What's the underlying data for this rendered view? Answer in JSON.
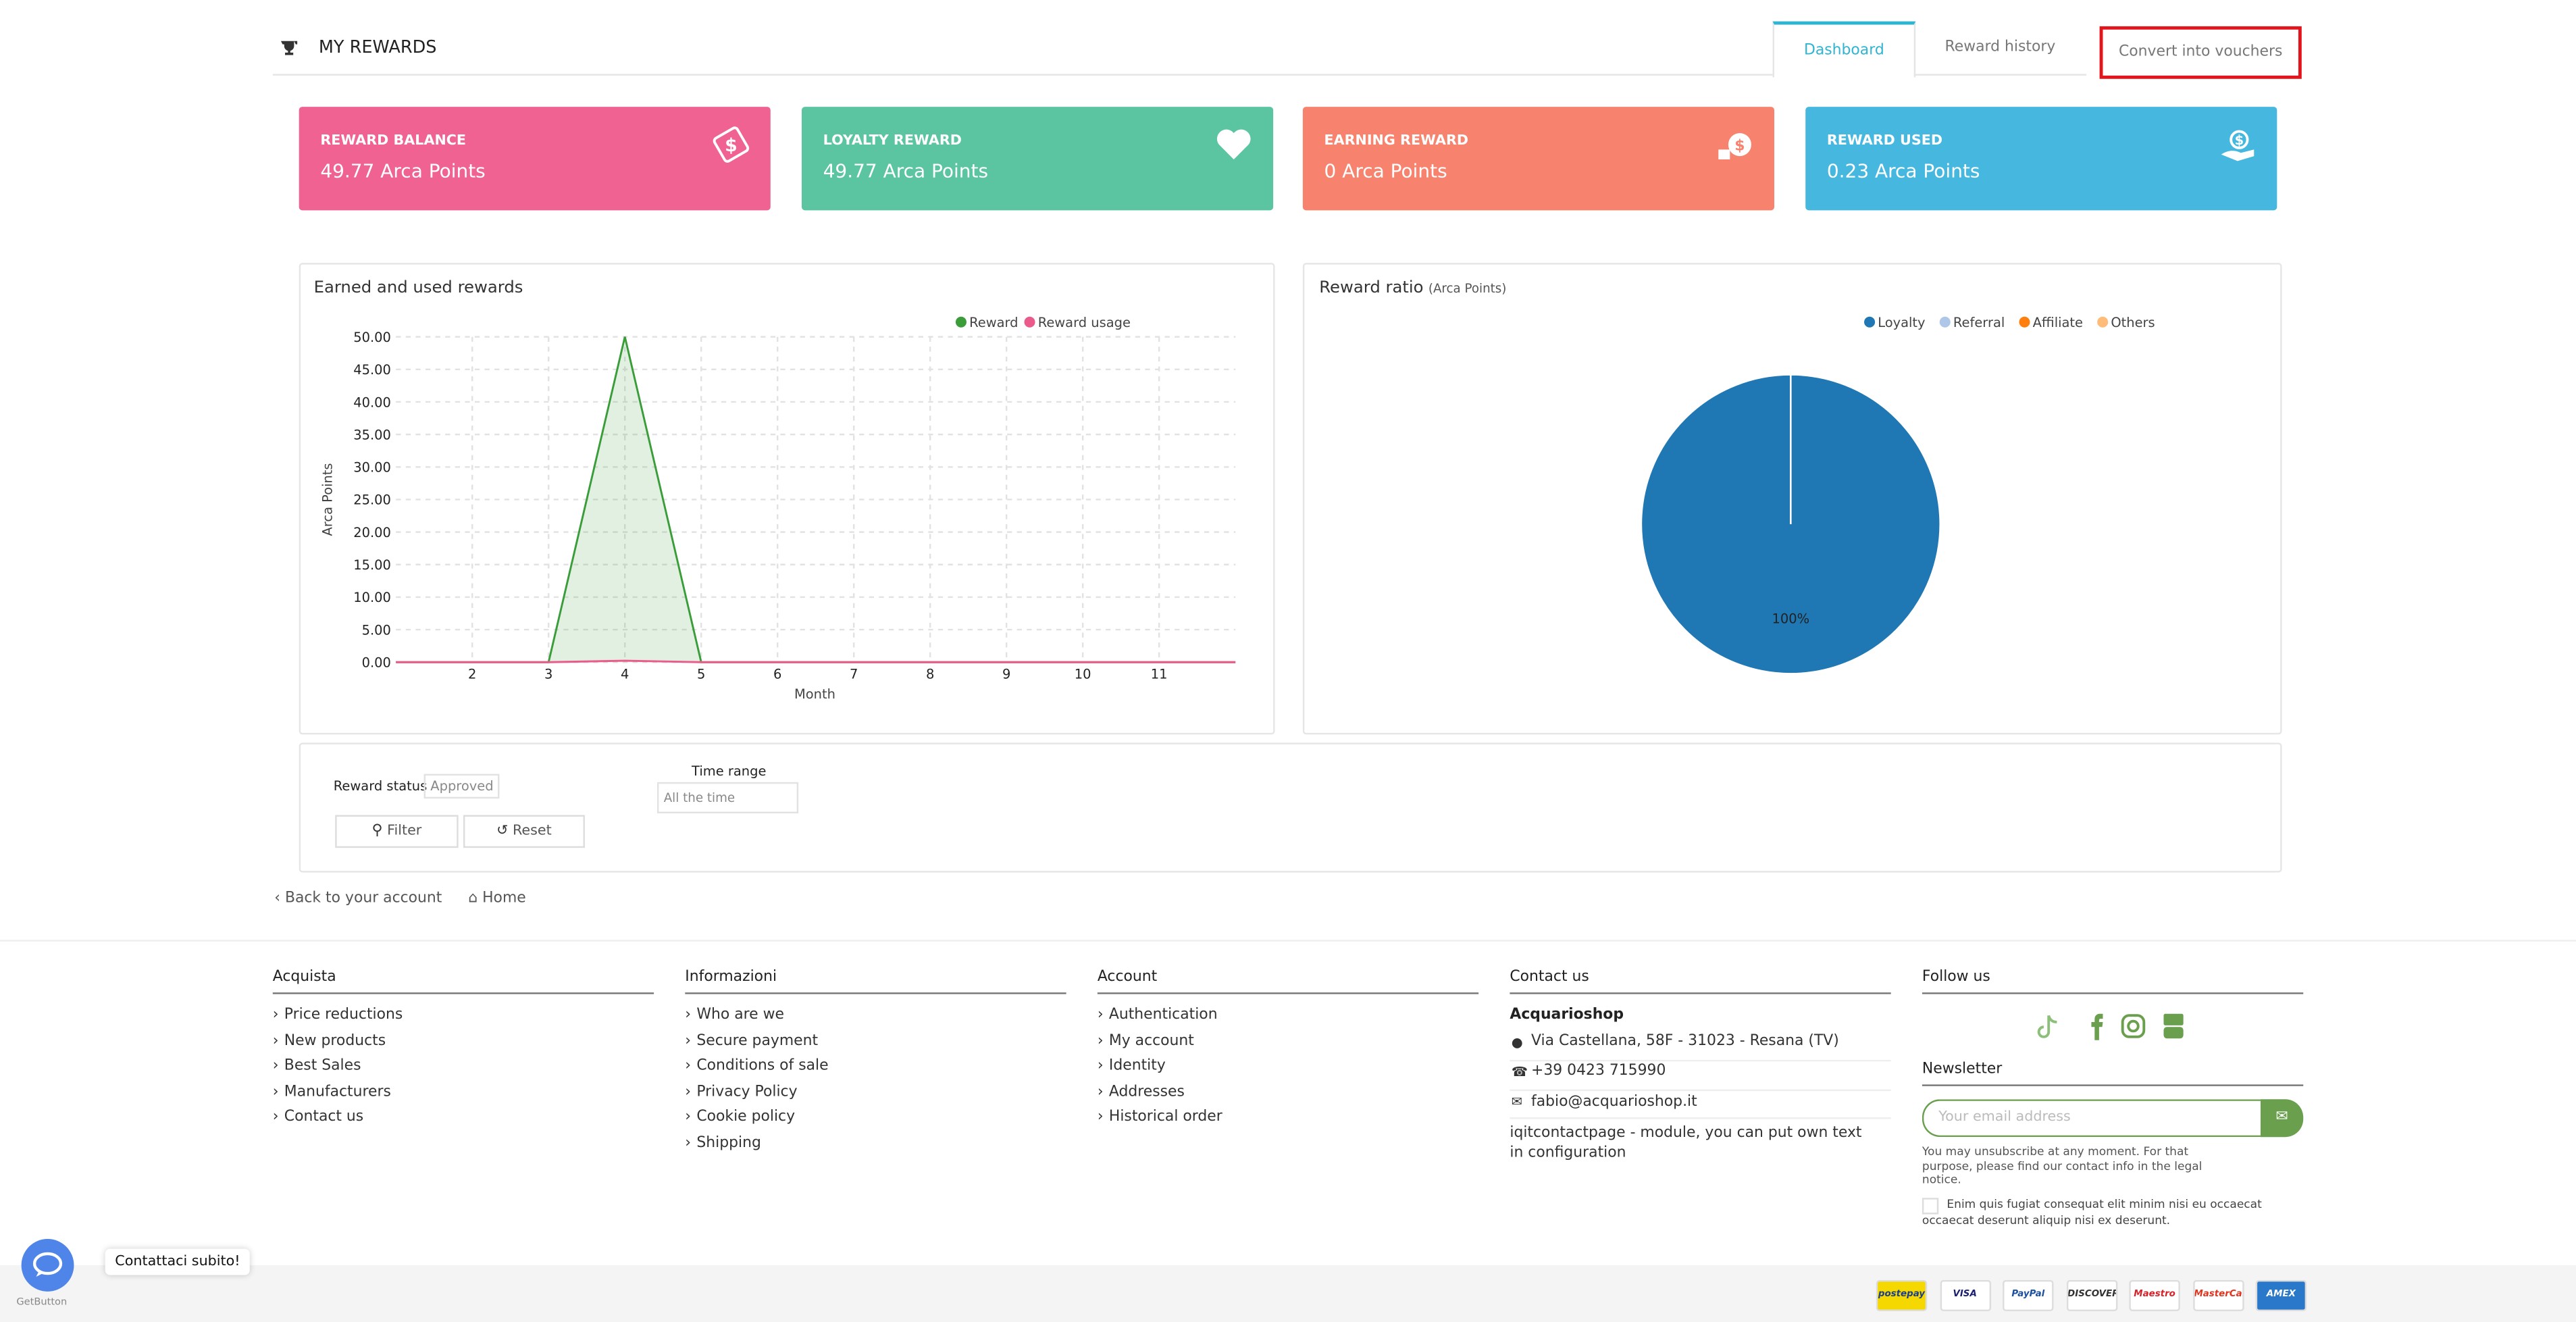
{
  "header": {
    "title": "MY REWARDS",
    "tabs": [
      "Dashboard",
      "Reward history",
      "Convert into vouchers"
    ]
  },
  "cards": [
    {
      "label": "REWARD BALANCE",
      "value": "49.77 Arca Points",
      "color": "#f06292"
    },
    {
      "label": "LOYALTY REWARD",
      "value": "49.77 Arca Points",
      "color": "#5bc4a0"
    },
    {
      "label": "EARNING REWARD",
      "value": "0 Arca Points",
      "color": "#f7836f"
    },
    {
      "label": "REWARD USED",
      "value": "0.23 Arca Points",
      "color": "#46b8e0"
    }
  ],
  "chart_data": [
    {
      "type": "line",
      "title": "Earned and used rewards",
      "x_label": "Month",
      "y_label": "Arca Points",
      "x": [
        1,
        2,
        3,
        4,
        5,
        6,
        7,
        8,
        9,
        10,
        11,
        12
      ],
      "series": [
        {
          "name": "Reward",
          "color": "#3a9d3a",
          "area_color": "rgba(58,157,58,0.15)",
          "values": [
            0,
            0,
            0,
            50,
            0,
            0,
            0,
            0,
            0,
            0,
            0,
            0
          ]
        },
        {
          "name": "Reward usage",
          "color": "#ea5b8c",
          "values": [
            0,
            0,
            0,
            0.23,
            0,
            0,
            0,
            0,
            0,
            0,
            0,
            0
          ]
        }
      ],
      "xlim": [
        1,
        12
      ],
      "xticks": [
        2,
        3,
        4,
        5,
        6,
        7,
        8,
        9,
        10,
        11
      ],
      "ylim": [
        0,
        50
      ],
      "yticks": [
        {
          "value": 0,
          "label": "0.00"
        },
        {
          "value": 5,
          "label": "5.00"
        },
        {
          "value": 10,
          "label": "10.00"
        },
        {
          "value": 15,
          "label": "15.00"
        },
        {
          "value": 20,
          "label": "20.00"
        },
        {
          "value": 25,
          "label": "25.00"
        },
        {
          "value": 30,
          "label": "30.00"
        },
        {
          "value": 35,
          "label": "35.00"
        },
        {
          "value": 40,
          "label": "40.00"
        },
        {
          "value": 45,
          "label": "45.00"
        },
        {
          "value": 50,
          "label": "50.00"
        }
      ],
      "grid": true
    },
    {
      "type": "pie",
      "title": "Reward ratio",
      "subtitle": "(Arca Points)",
      "categories": [
        "Loyalty",
        "Referral",
        "Affiliate",
        "Others"
      ],
      "values": [
        100,
        0,
        0,
        0
      ],
      "value_labels": [
        "100%",
        null,
        null,
        null
      ],
      "colors": [
        "#1f77b4",
        "#aec7e8",
        "#ff7f0e",
        "#ffbb78"
      ]
    }
  ],
  "filter": {
    "status_label": "Reward status",
    "status_value": "Approved",
    "time_label": "Time range",
    "time_value": "All the time",
    "filter_button": "Filter",
    "reset_button": "Reset"
  },
  "breadcrumb": [
    "Back to your account",
    "Home"
  ],
  "footer": {
    "columns": [
      {
        "title": "Acquista",
        "links": [
          "Price reductions",
          "New products",
          "Best Sales",
          "Manufacturers",
          "Contact us"
        ]
      },
      {
        "title": "Informazioni",
        "links": [
          "Who are we",
          "Secure payment",
          "Conditions of sale",
          "Privacy Policy",
          "Cookie policy",
          "Shipping"
        ]
      },
      {
        "title": "Account",
        "links": [
          "Authentication",
          "My account",
          "Identity",
          "Addresses",
          "Historical order"
        ]
      }
    ],
    "contact": {
      "title": "Contact us",
      "name": "Acquarioshop",
      "address": "Via Castellana, 58F - 31023 - Resana (TV)",
      "phone": "+39 0423 715990",
      "email": "fabio@acquarioshop.it",
      "note": "iqitcontactpage - module, you can put own text in configuration"
    },
    "follow": {
      "title": "Follow us",
      "newsletter_title": "Newsletter",
      "email_placeholder": "Your email address",
      "disclaimer": "You may unsubscribe at any moment. For that purpose, please find our contact info in the legal notice.",
      "consent": "Enim quis fugiat consequat elit minim nisi eu occaecat occaecat deserunt aliquip nisi ex deserunt."
    },
    "payments": [
      "postepay",
      "VISA",
      "PayPal",
      "DISCOVER",
      "Maestro",
      "MasterCard",
      "AMEX"
    ]
  },
  "chat": {
    "tooltip": "Contattaci subito!",
    "brand": "GetButton"
  }
}
